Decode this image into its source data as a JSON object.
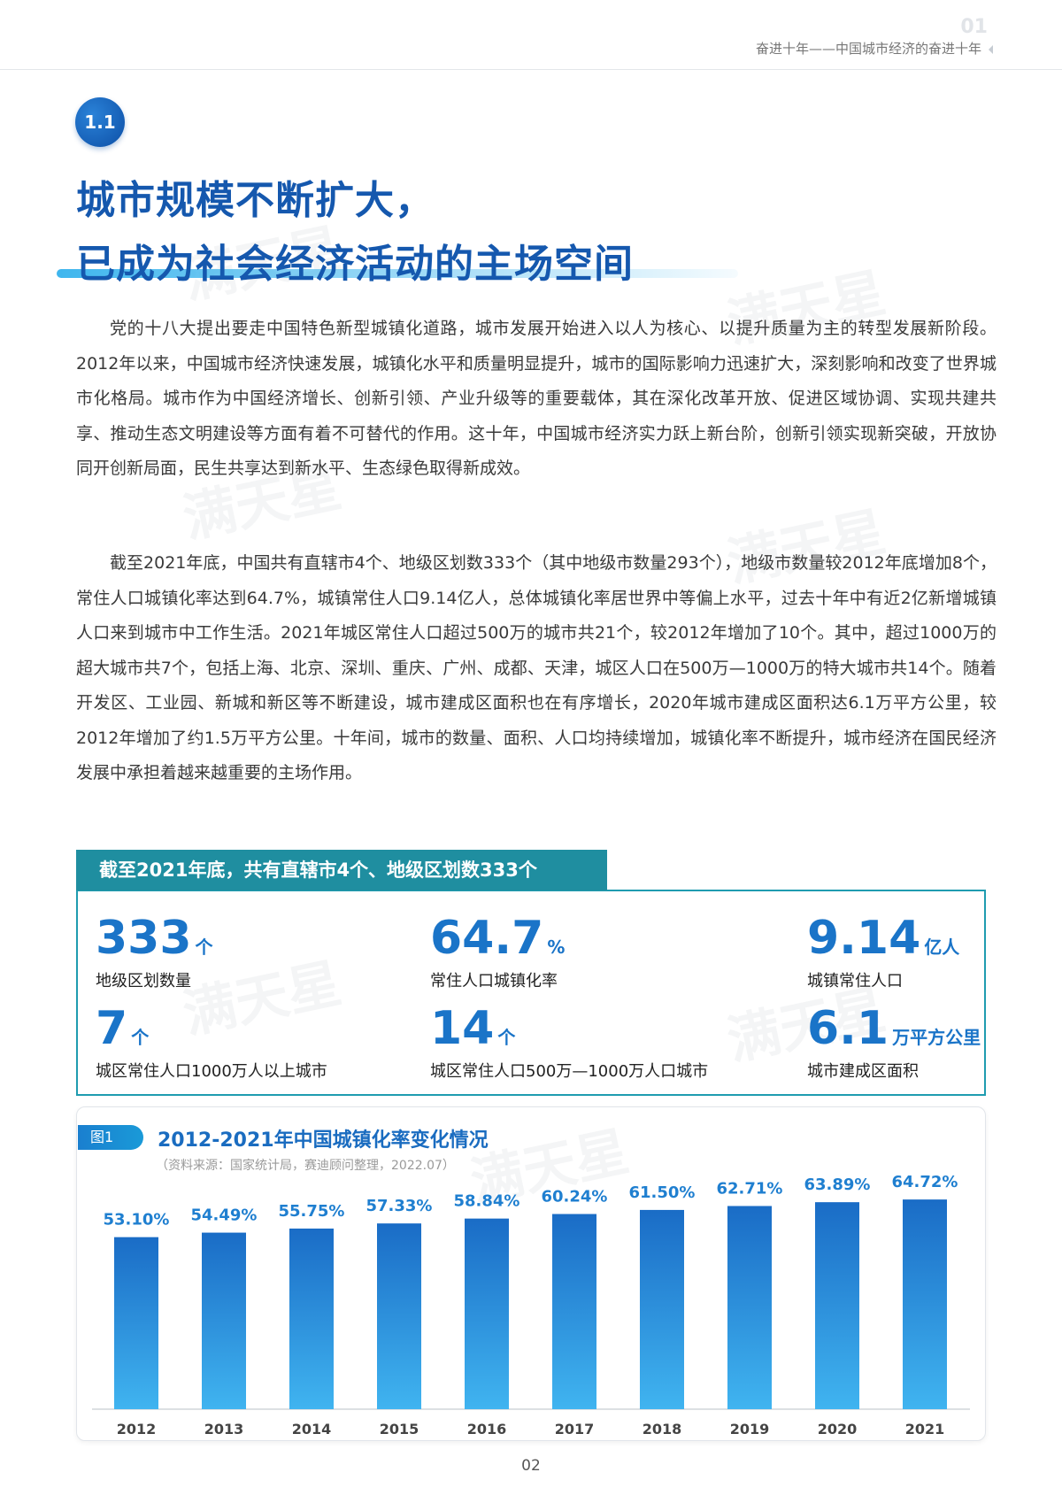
{
  "header": {
    "page_label": "01",
    "running_title": "奋进十年——中国城市经济的奋进十年"
  },
  "watermark": "满天星",
  "section": {
    "number": "1.1",
    "title_lines": [
      "城市规模不断扩大，",
      "已成为社会经济活动的主场空间"
    ],
    "paragraphs": [
      "党的十八大提出要走中国特色新型城镇化道路，城市发展开始进入以人为核心、以提升质量为主的转型发展新阶段。2012年以来，中国城市经济快速发展，城镇化水平和质量明显提升，城市的国际影响力迅速扩大，深刻影响和改变了世界城市化格局。城市作为中国经济增长、创新引领、产业升级等的重要载体，其在深化改革开放、促进区域协调、实现共建共享、推动生态文明建设等方面有着不可替代的作用。这十年，中国城市经济实力跃上新台阶，创新引领实现新突破，开放协同开创新局面，民生共享达到新水平、生态绿色取得新成效。",
      "截至2021年底，中国共有直辖市4个、地级区划数333个（其中地级市数量293个），地级市数量较2012年底增加8个，常住人口城镇化率达到64.7%，城镇常住人口9.14亿人，总体城镇化率居世界中等偏上水平，过去十年中有近2亿新增城镇人口来到城市中工作生活。2021年城区常住人口超过500万的城市共21个，较2012年增加了10个。其中，超过1000万的超大城市共7个，包括上海、北京、深圳、重庆、广州、成都、天津，城区人口在500万—1000万的特大城市共14个。随着开发区、工业园、新城和新区等不断建设，城市建成区面积也在有序增长，2020年城市建成区面积达6.1万平方公里，较2012年增加了约1.5万平方公里。十年间，城市的数量、面积、人口均持续增加，城镇化率不断提升，城市经济在国民经济发展中承担着越来越重要的主场作用。"
    ]
  },
  "stats_box": {
    "title": "截至2021年底，共有直辖市4个、地级区划数333个",
    "items": [
      {
        "value": 333,
        "unit": "个",
        "label": "地级区划数量"
      },
      {
        "value": 64.7,
        "unit": "%",
        "label": "常住人口城镇化率"
      },
      {
        "value": 9.14,
        "unit": "亿人",
        "label": "城镇常住人口"
      },
      {
        "value": 7,
        "unit": "个",
        "label": "城区常住人口1000万人以上城市"
      },
      {
        "value": 14,
        "unit": "个",
        "label": "城区常住人口500万—1000万人口城市"
      },
      {
        "value": 6.1,
        "unit": "万平方公里",
        "label": "城市建成区面积"
      }
    ]
  },
  "chart_data": {
    "type": "bar",
    "figure_tag": "图1",
    "title": "2012-2021年中国城镇化率变化情况",
    "source": "（资料来源：国家统计局，赛迪顾问整理，2022.07）",
    "categories": [
      "2012",
      "2013",
      "2014",
      "2015",
      "2016",
      "2017",
      "2018",
      "2019",
      "2020",
      "2021"
    ],
    "values": [
      53.1,
      54.49,
      55.75,
      57.33,
      58.84,
      60.24,
      61.5,
      62.71,
      63.89,
      64.72
    ],
    "value_labels": [
      "53.10%",
      "54.49%",
      "55.75%",
      "57.33%",
      "58.84%",
      "60.24%",
      "61.50%",
      "62.71%",
      "63.89%",
      "64.72%"
    ],
    "color": "#1f7fd0"
  },
  "footer": {
    "page_number": "02"
  }
}
